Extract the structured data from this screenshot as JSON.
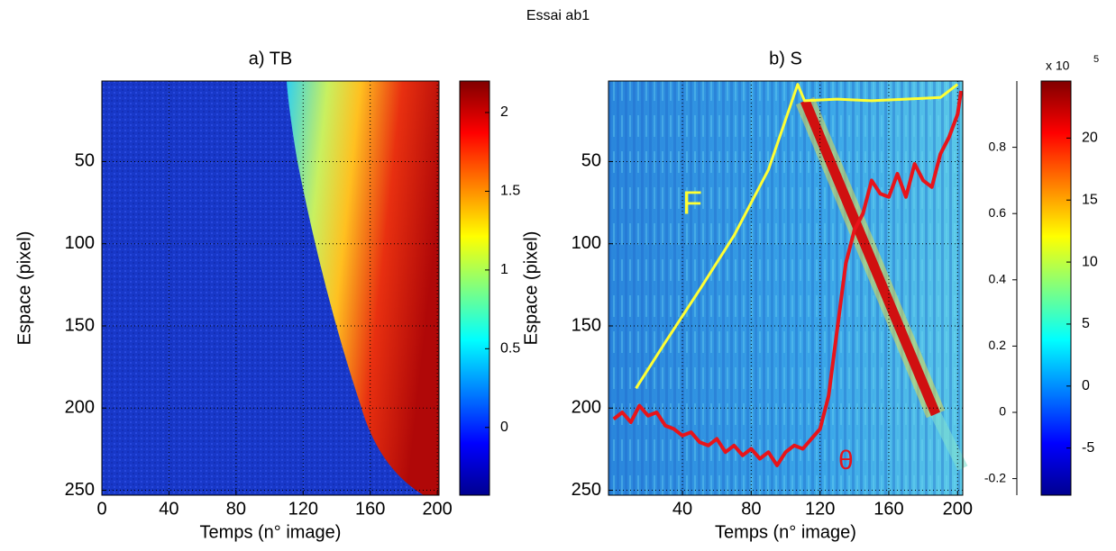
{
  "title": "Essai ab1",
  "chart_data": [
    {
      "type": "heatmap",
      "title": "a) TB",
      "xlabel": "Temps (n° image)",
      "ylabel": "Espace (pixel)",
      "xlim": [
        0,
        201
      ],
      "ylim": [
        1,
        253
      ],
      "y_reversed": true,
      "xticks": [
        0,
        40,
        80,
        120,
        160,
        200
      ],
      "yticks": [
        50,
        100,
        150,
        200,
        250
      ],
      "grid": true,
      "colorbar": {
        "clim": [
          -0.43,
          2.2
        ],
        "ticks": [
          0,
          0.5,
          1,
          1.5,
          2
        ]
      }
    },
    {
      "type": "heatmap",
      "title": "b) S",
      "xlabel": "Temps (n° image)",
      "ylabel": "Espace (pixel)",
      "xlim": [
        -3,
        203
      ],
      "ylim": [
        1,
        253
      ],
      "y_reversed": true,
      "xticks": [
        40,
        80,
        120,
        160,
        200
      ],
      "yticks": [
        50,
        100,
        150,
        200,
        250
      ],
      "grid": true,
      "y2lim": [
        -0.25,
        1.0
      ],
      "y2ticks": [
        -0.2,
        0,
        0.2,
        0.4,
        0.6,
        0.8
      ],
      "colorbar": {
        "clim": [
          -8.8,
          24.6
        ],
        "ticks": [
          -5,
          0,
          5,
          10,
          15,
          20
        ],
        "multiplier": "x 10",
        "exponent": "5"
      },
      "series": [
        {
          "name": "F",
          "color": "#ffff33",
          "x": [
            13,
            30,
            50,
            70,
            90,
            107,
            111,
            130,
            150,
            170,
            190,
            200
          ],
          "values": [
            188,
            160,
            128,
            95,
            55,
            3,
            13,
            12,
            13,
            12,
            11,
            3
          ]
        },
        {
          "name": "θ",
          "color": "#e8141a",
          "axis": "y2",
          "x": [
            0,
            5,
            10,
            15,
            20,
            25,
            30,
            35,
            40,
            45,
            50,
            55,
            60,
            65,
            70,
            75,
            80,
            85,
            90,
            95,
            100,
            105,
            110,
            115,
            120,
            125,
            130,
            135,
            140,
            145,
            150,
            155,
            160,
            165,
            170,
            175,
            180,
            185,
            190,
            195,
            200,
            202
          ],
          "values": [
            -0.02,
            0.0,
            -0.03,
            0.02,
            -0.01,
            0.0,
            -0.04,
            -0.05,
            -0.07,
            -0.06,
            -0.09,
            -0.1,
            -0.08,
            -0.12,
            -0.1,
            -0.13,
            -0.11,
            -0.14,
            -0.12,
            -0.16,
            -0.12,
            -0.1,
            -0.11,
            -0.08,
            -0.05,
            0.05,
            0.25,
            0.45,
            0.55,
            0.6,
            0.7,
            0.66,
            0.65,
            0.72,
            0.65,
            0.75,
            0.7,
            0.68,
            0.78,
            0.83,
            0.9,
            0.97
          ]
        }
      ]
    }
  ]
}
